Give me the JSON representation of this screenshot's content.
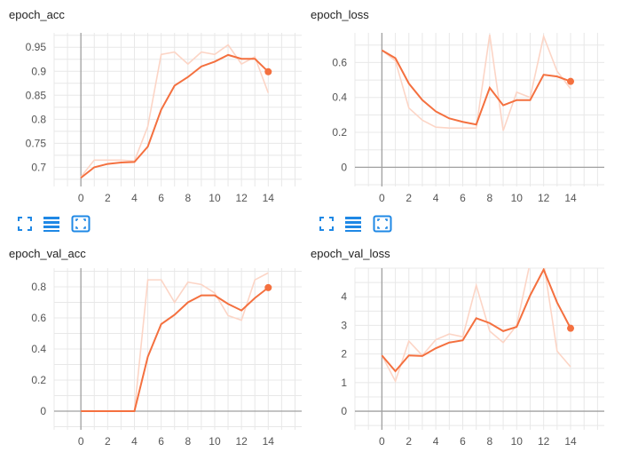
{
  "charts": [
    {
      "title": "epoch_acc",
      "type": "line",
      "ylim": [
        0.66,
        0.98
      ],
      "xlim": [
        -2,
        16.5
      ],
      "yticks": [
        0.7,
        0.75,
        0.8,
        0.85,
        0.9,
        0.95
      ],
      "ytick_labels": [
        "0.7",
        "0.75",
        "0.8",
        "0.85",
        "0.9",
        "0.95"
      ],
      "xticks": [
        0,
        2,
        4,
        6,
        8,
        10,
        12,
        14
      ],
      "xtick_labels": [
        "0",
        "2",
        "4",
        "6",
        "8",
        "10",
        "12",
        "14"
      ],
      "raw": [
        0.68,
        0.715,
        0.715,
        0.715,
        0.713,
        0.785,
        0.935,
        0.94,
        0.915,
        0.94,
        0.935,
        0.955,
        0.915,
        0.93,
        0.855
      ],
      "smoothed": [
        0.678,
        0.7,
        0.707,
        0.71,
        0.711,
        0.743,
        0.82,
        0.87,
        0.888,
        0.91,
        0.92,
        0.934,
        0.926,
        0.926,
        0.899
      ]
    },
    {
      "title": "epoch_loss",
      "type": "line",
      "ylim": [
        -0.11,
        0.77
      ],
      "xlim": [
        -2,
        16.5
      ],
      "yticks": [
        0,
        0.2,
        0.4,
        0.6
      ],
      "ytick_labels": [
        "0",
        "0.2",
        "0.4",
        "0.6"
      ],
      "xticks": [
        0,
        2,
        4,
        6,
        8,
        10,
        12,
        14
      ],
      "xtick_labels": [
        "0",
        "2",
        "4",
        "6",
        "8",
        "10",
        "12",
        "14"
      ],
      "raw": [
        0.67,
        0.61,
        0.34,
        0.27,
        0.23,
        0.225,
        0.225,
        0.225,
        0.76,
        0.21,
        0.43,
        0.4,
        0.75,
        0.55,
        0.45
      ],
      "smoothed": [
        0.67,
        0.625,
        0.48,
        0.385,
        0.32,
        0.28,
        0.26,
        0.245,
        0.455,
        0.355,
        0.385,
        0.385,
        0.53,
        0.52,
        0.492
      ]
    },
    {
      "title": "epoch_val_acc",
      "type": "line",
      "ylim": [
        -0.12,
        0.92
      ],
      "xlim": [
        -2,
        16.5
      ],
      "yticks": [
        0,
        0.2,
        0.4,
        0.6,
        0.8
      ],
      "ytick_labels": [
        "0",
        "0.2",
        "0.4",
        "0.6",
        "0.8"
      ],
      "xticks": [
        0,
        2,
        4,
        6,
        8,
        10,
        12,
        14
      ],
      "xtick_labels": [
        "0",
        "2",
        "4",
        "6",
        "8",
        "10",
        "12",
        "14"
      ],
      "raw": [
        0,
        0,
        0,
        0,
        0,
        0.845,
        0.845,
        0.7,
        0.83,
        0.815,
        0.76,
        0.615,
        0.585,
        0.845,
        0.89
      ],
      "smoothed": [
        0,
        0,
        0,
        0,
        0,
        0.35,
        0.56,
        0.62,
        0.7,
        0.745,
        0.745,
        0.69,
        0.648,
        0.728,
        0.795
      ]
    },
    {
      "title": "epoch_val_loss",
      "type": "line",
      "ylim": [
        -0.65,
        5.0
      ],
      "xlim": [
        -2,
        16.5
      ],
      "yticks": [
        0,
        1,
        2,
        3,
        4
      ],
      "ytick_labels": [
        "0",
        "1",
        "2",
        "3",
        "4"
      ],
      "xticks": [
        0,
        2,
        4,
        6,
        8,
        10,
        12,
        14
      ],
      "xtick_labels": [
        "0",
        "2",
        "4",
        "6",
        "8",
        "10",
        "12",
        "14"
      ],
      "raw": [
        1.95,
        1.05,
        2.45,
        1.95,
        2.5,
        2.7,
        2.6,
        4.4,
        2.8,
        2.4,
        3.0,
        5.2,
        5.2,
        2.1,
        1.55
      ],
      "smoothed": [
        1.95,
        1.4,
        1.95,
        1.93,
        2.2,
        2.4,
        2.48,
        3.25,
        3.08,
        2.8,
        2.95,
        4.05,
        4.95,
        3.8,
        2.9
      ]
    }
  ],
  "colors": {
    "smoothed": "#f4703f",
    "raw": "#fcd5c6",
    "grid": "#e8e8e8",
    "axis": "#a0a0a0",
    "tick_text": "#555555",
    "toolbar_icon": "#1f88e5"
  },
  "toolbar_icons": [
    "fullscreen-icon",
    "list-icon",
    "fit-domain-icon"
  ]
}
